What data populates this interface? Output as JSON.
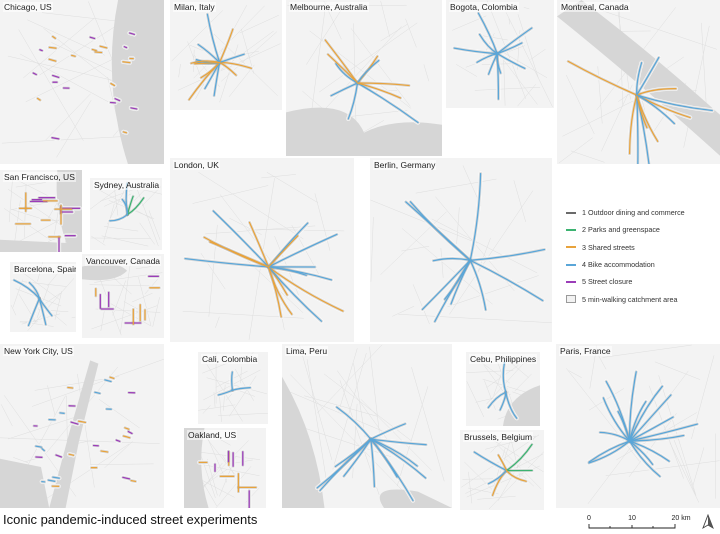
{
  "title": "Iconic pandemic-induced street experiments",
  "colors": {
    "dining": "#6a6a6a",
    "parks": "#3cb371",
    "shared": "#e8a33c",
    "bike": "#5aa6d8",
    "closure": "#9b3db8",
    "catchment": "#f2f2f2"
  },
  "legend": [
    {
      "label": "1 Outdoor dining and commerce",
      "key": "dining",
      "kind": "line"
    },
    {
      "label": "2 Parks and greenspace",
      "key": "parks",
      "kind": "line"
    },
    {
      "label": "3 Shared streets",
      "key": "shared",
      "kind": "line"
    },
    {
      "label": "4 Bike accommodation",
      "key": "bike",
      "kind": "line"
    },
    {
      "label": "5 Street closure",
      "key": "closure",
      "kind": "line"
    },
    {
      "label": "5 min-walking catchment area",
      "key": "catchment",
      "kind": "box"
    }
  ],
  "scale": {
    "ticks": [
      "0",
      "10",
      "20 km"
    ]
  },
  "cities": [
    {
      "id": "chicago",
      "label": "Chicago, US",
      "water": "right"
    },
    {
      "id": "milan",
      "label": "Milan, Italy",
      "water": "none"
    },
    {
      "id": "melbourne",
      "label": "Melbourne, Australia",
      "water": "bottom"
    },
    {
      "id": "bogota",
      "label": "Bogota, Colombia",
      "water": "none"
    },
    {
      "id": "montreal",
      "label": "Montreal, Canada",
      "water": "river"
    },
    {
      "id": "sanfrancisco",
      "label": "San Francisco, US",
      "water": "bay"
    },
    {
      "id": "sydney",
      "label": "Sydney, Australia",
      "water": "none"
    },
    {
      "id": "london",
      "label": "London, UK",
      "water": "none"
    },
    {
      "id": "berlin",
      "label": "Berlin, Germany",
      "water": "none"
    },
    {
      "id": "barcelona",
      "label": "Barcelona, Spain",
      "water": "none"
    },
    {
      "id": "vancouver",
      "label": "Vancouver, Canada",
      "water": "inlet"
    },
    {
      "id": "newyork",
      "label": "New York City, US",
      "water": "harbor"
    },
    {
      "id": "cali",
      "label": "Cali, Colombia",
      "water": "none"
    },
    {
      "id": "oakland",
      "label": "Oakland, US",
      "water": "left"
    },
    {
      "id": "lima",
      "label": "Lima, Peru",
      "water": "coast"
    },
    {
      "id": "cebu",
      "label": "Cebu, Philippines",
      "water": "strait"
    },
    {
      "id": "brussels",
      "label": "Brussels, Belgium",
      "water": "none"
    },
    {
      "id": "paris",
      "label": "Paris, France",
      "water": "none"
    }
  ]
}
